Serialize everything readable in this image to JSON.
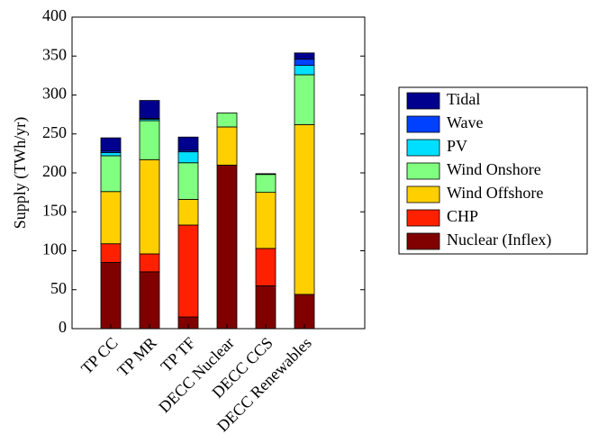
{
  "chart_data": {
    "type": "stacked_bar",
    "ylabel": "Supply (TWh/yr)",
    "categories": [
      "TP CC",
      "TP MR",
      "TP TF",
      "DECC Nuclear",
      "DECC CCS",
      "DECC Renewables"
    ],
    "series": [
      {
        "name": "Nuclear (Inflex)",
        "color": "#800000",
        "values": [
          85,
          73,
          15,
          210,
          55,
          44
        ]
      },
      {
        "name": "CHP",
        "color": "#ff2000",
        "values": [
          24,
          23,
          118,
          0,
          48,
          0
        ]
      },
      {
        "name": "Wind Offshore",
        "color": "#ffcf00",
        "values": [
          67,
          121,
          33,
          49,
          72,
          218
        ]
      },
      {
        "name": "Wind Onshore",
        "color": "#80ff80",
        "values": [
          46,
          50,
          47,
          18,
          23,
          64
        ]
      },
      {
        "name": "PV",
        "color": "#00dfff",
        "values": [
          4,
          2,
          14,
          0,
          0,
          12
        ]
      },
      {
        "name": "Wave",
        "color": "#0040ff",
        "values": [
          2,
          1,
          2,
          0,
          0,
          8
        ]
      },
      {
        "name": "Tidal",
        "color": "#00008f",
        "values": [
          17,
          23,
          17,
          0,
          1,
          8
        ]
      }
    ],
    "ylim": [
      0,
      400
    ],
    "yticks": [
      0,
      50,
      100,
      150,
      200,
      250,
      300,
      350,
      400
    ],
    "legend": "outside-right"
  }
}
